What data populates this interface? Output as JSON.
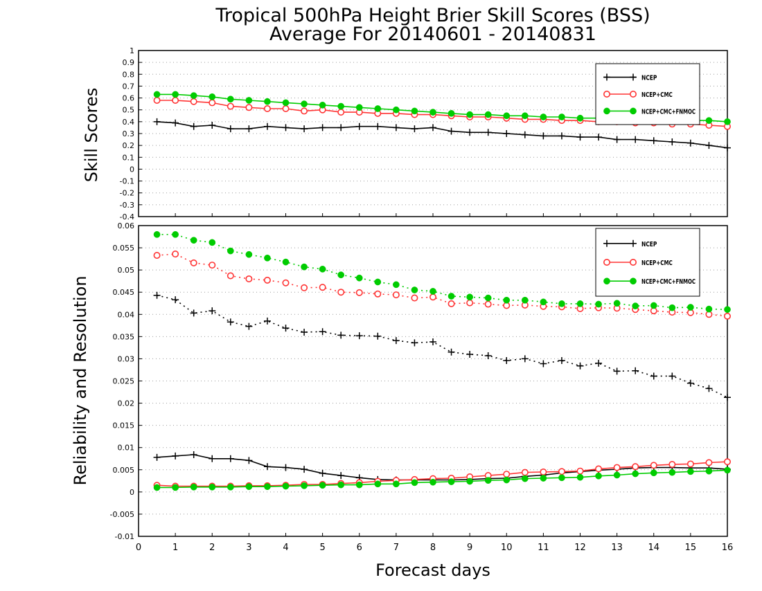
{
  "title_line1": "Tropical 500hPa Height Brier Skill Scores (BSS)",
  "title_line2": "Average For 20140601 - 20140831",
  "xlabel": "Forecast days",
  "colors": {
    "ncep": "#000000",
    "ncep_cmc": "#ff3333",
    "ncep_cmc_fnmoc": "#00cc00"
  },
  "chart_data": [
    {
      "type": "line",
      "ylabel": "Skill Scores",
      "xlim": [
        0,
        16
      ],
      "ylim": [
        -0.4,
        1
      ],
      "xticks": [
        "0",
        "1",
        "2",
        "3",
        "4",
        "5",
        "6",
        "7",
        "8",
        "9",
        "10",
        "11",
        "12",
        "13",
        "14",
        "15",
        "16"
      ],
      "yticks": [
        -0.4,
        -0.3,
        -0.2,
        -0.1,
        0,
        0.1,
        0.2,
        0.3,
        0.4,
        0.5,
        0.6,
        0.7,
        0.8,
        0.9,
        1
      ],
      "ytick_labels": [
        "-0.4",
        "-0.3",
        "-0.2",
        "-0.1",
        "0",
        "0.1",
        "0.2",
        "0.3",
        "0.4",
        "0.5",
        "0.6",
        "0.7",
        "0.8",
        "0.9",
        "1"
      ],
      "grid": "horizontal dotted",
      "legend_position": "top-right",
      "x": [
        0.5,
        1,
        1.5,
        2,
        2.5,
        3,
        3.5,
        4,
        4.5,
        5,
        5.5,
        6,
        6.5,
        7,
        7.5,
        8,
        8.5,
        9,
        9.5,
        10,
        10.5,
        11,
        11.5,
        12,
        12.5,
        13,
        13.5,
        14,
        14.5,
        15,
        15.5,
        16
      ],
      "series": [
        {
          "name": "NCEP",
          "color": "ncep",
          "marker": "plus",
          "dash": "solid",
          "values": [
            0.4,
            0.39,
            0.36,
            0.37,
            0.34,
            0.34,
            0.36,
            0.35,
            0.34,
            0.35,
            0.35,
            0.36,
            0.36,
            0.35,
            0.34,
            0.35,
            0.32,
            0.31,
            0.31,
            0.3,
            0.29,
            0.28,
            0.28,
            0.27,
            0.27,
            0.25,
            0.25,
            0.24,
            0.23,
            0.22,
            0.2,
            0.18
          ]
        },
        {
          "name": "NCEP+CMC",
          "color": "ncep_cmc",
          "marker": "circle",
          "dash": "solid",
          "values": [
            0.58,
            0.58,
            0.57,
            0.56,
            0.53,
            0.52,
            0.51,
            0.51,
            0.49,
            0.5,
            0.48,
            0.48,
            0.47,
            0.47,
            0.46,
            0.46,
            0.45,
            0.44,
            0.44,
            0.43,
            0.42,
            0.42,
            0.41,
            0.41,
            0.4,
            0.4,
            0.39,
            0.39,
            0.38,
            0.38,
            0.37,
            0.36
          ]
        },
        {
          "name": "NCEP+CMC+FNMOC",
          "color": "ncep_cmc_fnmoc",
          "marker": "dot",
          "dash": "solid",
          "values": [
            0.63,
            0.63,
            0.62,
            0.61,
            0.59,
            0.58,
            0.57,
            0.56,
            0.55,
            0.54,
            0.53,
            0.52,
            0.51,
            0.5,
            0.49,
            0.48,
            0.47,
            0.46,
            0.46,
            0.45,
            0.45,
            0.44,
            0.44,
            0.43,
            0.43,
            0.42,
            0.42,
            0.42,
            0.41,
            0.41,
            0.41,
            0.4
          ]
        }
      ]
    },
    {
      "type": "line",
      "ylabel": "Reliability and Resolution",
      "xlim": [
        0,
        16
      ],
      "ylim": [
        -0.01,
        0.06
      ],
      "xticks": [
        "0",
        "1",
        "2",
        "3",
        "4",
        "5",
        "6",
        "7",
        "8",
        "9",
        "10",
        "11",
        "12",
        "13",
        "14",
        "15",
        "16"
      ],
      "yticks": [
        -0.01,
        -0.005,
        0,
        0.005,
        0.01,
        0.015,
        0.02,
        0.025,
        0.03,
        0.035,
        0.04,
        0.045,
        0.05,
        0.055,
        0.06
      ],
      "ytick_labels": [
        "-0.01",
        "-0.005",
        "0",
        "0.005",
        "0.01",
        "0.015",
        "0.02",
        "0.025",
        "0.03",
        "0.035",
        "0.04",
        "0.045",
        "0.05",
        "0.055",
        "0.06"
      ],
      "grid": "horizontal dotted",
      "legend_position": "top-right",
      "x": [
        0.5,
        1,
        1.5,
        2,
        2.5,
        3,
        3.5,
        4,
        4.5,
        5,
        5.5,
        6,
        6.5,
        7,
        7.5,
        8,
        8.5,
        9,
        9.5,
        10,
        10.5,
        11,
        11.5,
        12,
        12.5,
        13,
        13.5,
        14,
        14.5,
        15,
        15.5,
        16
      ],
      "series": [
        {
          "name": "NCEP",
          "color": "ncep",
          "marker": "plus",
          "dash": "dotted",
          "role": "resolution",
          "values": [
            0.0443,
            0.0433,
            0.0403,
            0.0408,
            0.0383,
            0.0373,
            0.0385,
            0.0369,
            0.036,
            0.0361,
            0.0353,
            0.0352,
            0.0351,
            0.0341,
            0.0336,
            0.0338,
            0.0315,
            0.031,
            0.0307,
            0.0296,
            0.03,
            0.0289,
            0.0296,
            0.0284,
            0.029,
            0.0272,
            0.0273,
            0.0261,
            0.0261,
            0.0245,
            0.0233,
            0.0213
          ]
        },
        {
          "name": "NCEP+CMC",
          "color": "ncep_cmc",
          "marker": "circle",
          "dash": "dotted",
          "role": "resolution",
          "values": [
            0.0533,
            0.0536,
            0.0516,
            0.0511,
            0.0487,
            0.048,
            0.0477,
            0.0471,
            0.046,
            0.0461,
            0.045,
            0.0449,
            0.0446,
            0.0444,
            0.0437,
            0.0439,
            0.0424,
            0.0426,
            0.0423,
            0.042,
            0.0421,
            0.0418,
            0.0417,
            0.0413,
            0.0415,
            0.0414,
            0.0411,
            0.0408,
            0.0405,
            0.0404,
            0.04,
            0.0396
          ]
        },
        {
          "name": "NCEP+CMC+FNMOC",
          "color": "ncep_cmc_fnmoc",
          "marker": "dot",
          "dash": "dotted",
          "role": "resolution",
          "values": [
            0.058,
            0.058,
            0.0567,
            0.0562,
            0.0543,
            0.0535,
            0.0527,
            0.0518,
            0.0507,
            0.0502,
            0.0489,
            0.0482,
            0.0473,
            0.0467,
            0.0455,
            0.0452,
            0.0441,
            0.0439,
            0.0437,
            0.0432,
            0.0432,
            0.0428,
            0.0424,
            0.0424,
            0.0423,
            0.0425,
            0.0419,
            0.042,
            0.0415,
            0.0416,
            0.0412,
            0.0411
          ]
        },
        {
          "name": "NCEP",
          "color": "ncep",
          "marker": "plus",
          "dash": "solid",
          "role": "reliability",
          "values": [
            0.0078,
            0.0081,
            0.0084,
            0.0075,
            0.0075,
            0.0071,
            0.0057,
            0.0055,
            0.0051,
            0.0042,
            0.0037,
            0.0032,
            0.0028,
            0.0027,
            0.0027,
            0.0027,
            0.0027,
            0.0028,
            0.003,
            0.0031,
            0.0035,
            0.0038,
            0.0043,
            0.0046,
            0.0049,
            0.0051,
            0.0054,
            0.0055,
            0.0055,
            0.0054,
            0.0054,
            0.0051
          ]
        },
        {
          "name": "NCEP+CMC",
          "color": "ncep_cmc",
          "marker": "circle",
          "dash": "solid",
          "role": "reliability",
          "values": [
            0.0015,
            0.0013,
            0.0013,
            0.0013,
            0.0013,
            0.0014,
            0.0014,
            0.0015,
            0.0017,
            0.0017,
            0.0019,
            0.0021,
            0.0024,
            0.0026,
            0.0028,
            0.003,
            0.0031,
            0.0034,
            0.0037,
            0.004,
            0.0044,
            0.0045,
            0.0046,
            0.0047,
            0.0052,
            0.0055,
            0.0057,
            0.006,
            0.0062,
            0.0063,
            0.0066,
            0.0068
          ]
        },
        {
          "name": "NCEP+CMC+FNMOC",
          "color": "ncep_cmc_fnmoc",
          "marker": "dot",
          "dash": "solid",
          "role": "reliability",
          "values": [
            0.001,
            0.001,
            0.0011,
            0.0011,
            0.0011,
            0.0012,
            0.0012,
            0.0013,
            0.0014,
            0.0015,
            0.0016,
            0.0016,
            0.0018,
            0.0018,
            0.0021,
            0.0022,
            0.0023,
            0.0024,
            0.0026,
            0.0027,
            0.003,
            0.0031,
            0.0032,
            0.0033,
            0.0036,
            0.0038,
            0.0041,
            0.0043,
            0.0044,
            0.0046,
            0.0047,
            0.0049
          ]
        }
      ]
    }
  ]
}
